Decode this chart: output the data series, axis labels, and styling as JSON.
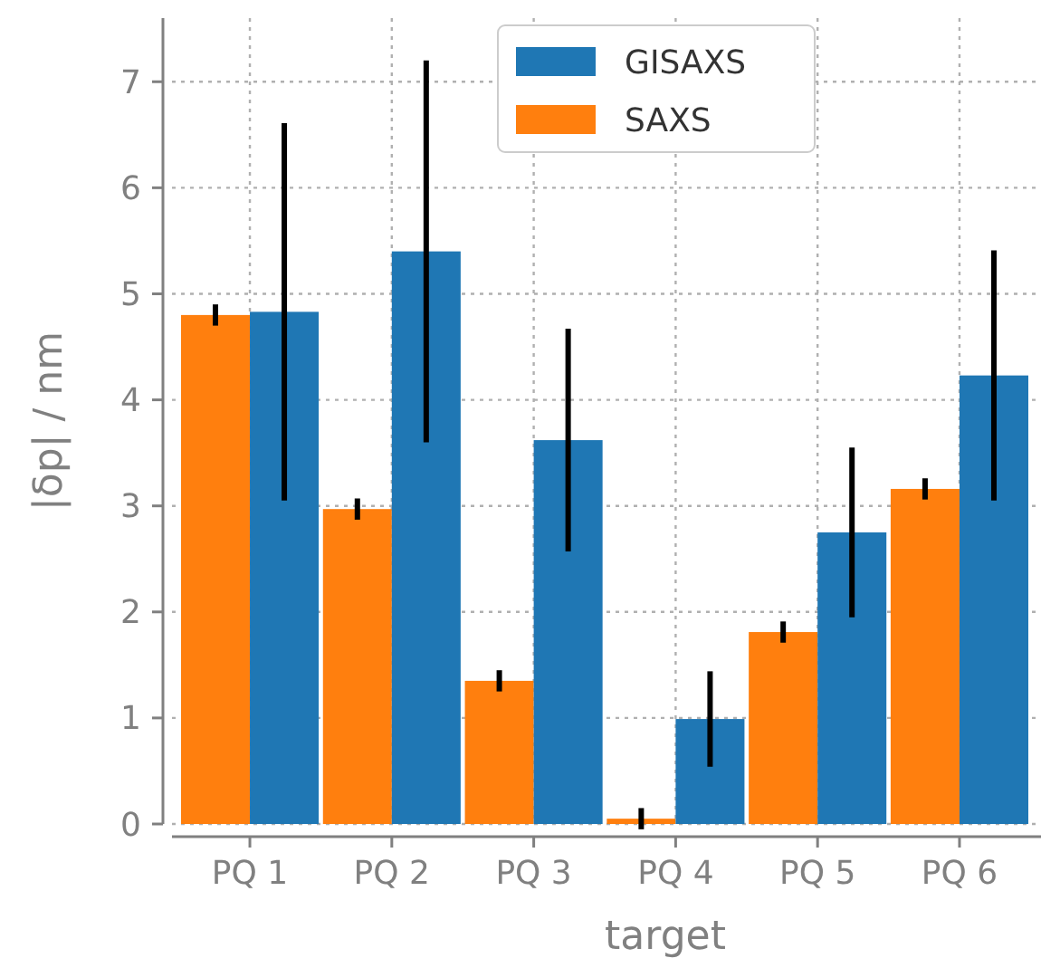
{
  "chart_data": {
    "type": "bar",
    "xlabel": "target",
    "ylabel": "|δp| / nm",
    "categories": [
      "PQ 1",
      "PQ 2",
      "PQ 3",
      "PQ 4",
      "PQ 5",
      "PQ 6"
    ],
    "series": [
      {
        "name": "SAXS",
        "color": "#ff7f0e",
        "values": [
          4.8,
          2.97,
          1.35,
          0.05,
          1.81,
          3.16
        ],
        "errors": [
          0.1,
          0.1,
          0.1,
          0.1,
          0.1,
          0.1
        ]
      },
      {
        "name": "GISAXS",
        "color": "#1f77b4",
        "values": [
          4.83,
          5.4,
          3.62,
          0.99,
          2.75,
          4.23
        ],
        "errors": [
          1.78,
          1.8,
          1.05,
          0.45,
          0.8,
          1.18
        ]
      }
    ],
    "ylim": [
      0,
      7.6
    ],
    "yticks": [
      0,
      1,
      2,
      3,
      4,
      5,
      6,
      7
    ],
    "grid": true,
    "legend": "top"
  }
}
